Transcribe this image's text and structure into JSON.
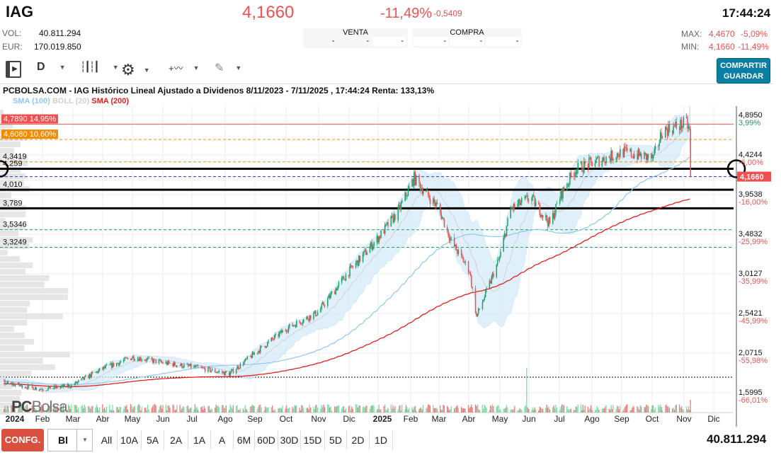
{
  "header": {
    "ticker": "IAG",
    "price": "4,1660",
    "change_pct": "-11,49%",
    "change_abs": "-0,5409",
    "time": "17:44:24",
    "vol_label": "VOL:",
    "vol": "40.811.294",
    "eur_label": "EUR:",
    "eur": "170.019.850",
    "venta": {
      "label": "VENTA",
      "cells": [
        "-",
        "-",
        "-"
      ]
    },
    "compra": {
      "label": "COMPRA",
      "cells": [
        "-",
        "-",
        "-"
      ]
    },
    "max_label": "MAX:",
    "max": "4,4670",
    "max_pct": "-5,09%",
    "min_label": "MIN:",
    "min": "4,1660",
    "min_pct": "-11,49%",
    "share_label": "COMPARTIR",
    "save_label": "GUARDAR"
  },
  "toolbar": {
    "period": "D",
    "icons": [
      "sidebar-toggle-icon",
      "candlestick-icon",
      "gear-icon",
      "indicators-icon",
      "pencil-icon"
    ]
  },
  "chart_title": "PCBOLSA.COM - IAG Histórico Lineal Ajustado a Dividenos 8/11/2023 - 7/11/2025 , 17:44:24 Renta: 133,13%",
  "legend": {
    "sma100": "SMA (100)",
    "boll": "BOLL (20)",
    "sma200": "SMA (200)",
    "colors": {
      "sma100": "#90c8f0",
      "boll": "#d0d0d0",
      "sma200": "#e02020"
    }
  },
  "watermark": "PCBolsa",
  "chart_data": {
    "type": "candlestick",
    "ylim": [
      1.5995,
      4.895
    ],
    "y_ticks": [
      {
        "v": "4,8950",
        "p": "3,99%"
      },
      {
        "v": "4,4244",
        "p": "-6,00%"
      },
      {
        "v": "3,9538",
        "p": "-16,00%"
      },
      {
        "v": "3,4832",
        "p": "-25,99%"
      },
      {
        "v": "3,0127",
        "p": "-35,99%"
      },
      {
        "v": "2,5421",
        "p": "-45,99%"
      },
      {
        "v": "2,0715",
        "p": "-55,98%"
      },
      {
        "v": "1,5995",
        "p": "-66,01%"
      }
    ],
    "x_ticks": [
      "2024",
      "Feb",
      "Mar",
      "Abr",
      "May",
      "Jun",
      "Jul",
      "Ago",
      "Sep",
      "Oct",
      "Nov",
      "Dic",
      "2025",
      "Feb",
      "Mar",
      "Abr",
      "May",
      "Jun",
      "Jul",
      "Ago",
      "Sep",
      "Oct",
      "Nov",
      "Dic"
    ],
    "last_price": "4,1660",
    "levels": [
      {
        "value": 4.789,
        "label": "4,7890",
        "pct": "14,95%",
        "style": "red-solid"
      },
      {
        "value": 4.608,
        "label": "4,6080",
        "pct": "10,60%",
        "style": "orange-dashed"
      },
      {
        "value": 4.3419,
        "label": "4,3419",
        "style": "orange-dashed"
      },
      {
        "value": 4.259,
        "label": "4,259",
        "style": "black-thick"
      },
      {
        "value": 4.166,
        "label": "",
        "style": "blue-dashed"
      },
      {
        "value": 4.01,
        "label": "4,010",
        "style": "black-thick"
      },
      {
        "value": 3.789,
        "label": "3,789",
        "style": "black-thick"
      },
      {
        "value": 3.5346,
        "label": "3,5346",
        "style": "green-dashed"
      },
      {
        "value": 3.3249,
        "label": "3,3249",
        "style": "green-dashed"
      }
    ],
    "price_path": [
      [
        "2023-11-08",
        1.72
      ],
      [
        "2023-12-10",
        1.74
      ],
      [
        "2024-01-01",
        1.7
      ],
      [
        "2024-02-01",
        1.64
      ],
      [
        "2024-03-01",
        1.68
      ],
      [
        "2024-04-01",
        1.88
      ],
      [
        "2024-05-01",
        2.02
      ],
      [
        "2024-06-01",
        1.95
      ],
      [
        "2024-07-01",
        1.9
      ],
      [
        "2024-08-05",
        1.82
      ],
      [
        "2024-09-01",
        2.08
      ],
      [
        "2024-10-01",
        2.36
      ],
      [
        "2024-11-01",
        2.55
      ],
      [
        "2024-12-01",
        3.02
      ],
      [
        "2025-01-01",
        3.45
      ],
      [
        "2025-01-20",
        3.75
      ],
      [
        "2025-02-05",
        4.15
      ],
      [
        "2025-02-18",
        3.95
      ],
      [
        "2025-03-01",
        3.8
      ],
      [
        "2025-03-15",
        3.37
      ],
      [
        "2025-04-01",
        3.05
      ],
      [
        "2025-04-08",
        2.5
      ],
      [
        "2025-04-20",
        2.86
      ],
      [
        "2025-05-01",
        3.2
      ],
      [
        "2025-05-12",
        3.78
      ],
      [
        "2025-06-01",
        3.92
      ],
      [
        "2025-06-20",
        3.6
      ],
      [
        "2025-07-01",
        3.95
      ],
      [
        "2025-07-15",
        4.25
      ],
      [
        "2025-08-01",
        4.33
      ],
      [
        "2025-09-01",
        4.46
      ],
      [
        "2025-10-01",
        4.38
      ],
      [
        "2025-10-10",
        4.71
      ],
      [
        "2025-11-03",
        4.8
      ],
      [
        "2025-11-06",
        4.71
      ],
      [
        "2025-11-07",
        4.166
      ]
    ]
  },
  "bottom": {
    "config_label": "CONFG.",
    "type_value": "Bl",
    "periods": [
      "All",
      "10A",
      "5A",
      "2A",
      "1A",
      "A",
      "6M",
      "60D",
      "30D",
      "15D",
      "5D",
      "2D",
      "1D"
    ],
    "volume": "40.811.294"
  }
}
